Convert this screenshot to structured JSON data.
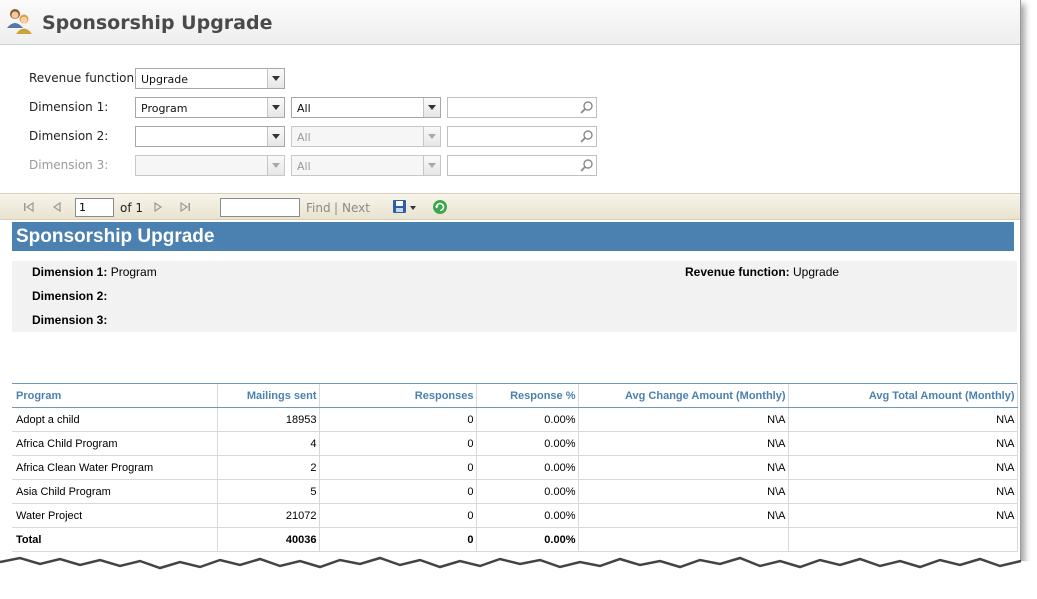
{
  "header": {
    "title": "Sponsorship Upgrade",
    "icon": "users-icon"
  },
  "parameters": {
    "revenue_function": {
      "label": "Revenue function:",
      "value": "Upgrade"
    },
    "dimension1": {
      "label": "Dimension 1:",
      "value": "Program",
      "filter": "All",
      "lookup": ""
    },
    "dimension2": {
      "label": "Dimension 2:",
      "value": "",
      "filter": "All",
      "lookup": ""
    },
    "dimension3": {
      "label": "Dimension 3:",
      "value": "",
      "filter": "All",
      "lookup": ""
    }
  },
  "toolbar": {
    "page": "1",
    "of_label": "of 1",
    "find_label": "Find",
    "separator": "|",
    "next_label": "Next"
  },
  "report": {
    "title": "Sponsorship Upgrade",
    "banner_color": "#4b81b0",
    "summary": {
      "dim1_label": "Dimension 1:",
      "dim1_value": "Program",
      "dim2_label": "Dimension 2:",
      "dim2_value": "",
      "dim3_label": "Dimension 3:",
      "dim3_value": "",
      "revfn_label": "Revenue function:",
      "revfn_value": "Upgrade"
    },
    "columns": [
      "Program",
      "Mailings sent",
      "Responses",
      "Response %",
      "Avg Change Amount (Monthly)",
      "Avg Total Amount (Monthly)"
    ],
    "rows": [
      [
        "Adopt a child",
        "18953",
        "0",
        "0.00%",
        "N\\A",
        "N\\A"
      ],
      [
        "Africa Child Program",
        "4",
        "0",
        "0.00%",
        "N\\A",
        "N\\A"
      ],
      [
        "Africa Clean Water Program",
        "2",
        "0",
        "0.00%",
        "N\\A",
        "N\\A"
      ],
      [
        "Asia Child Program",
        "5",
        "0",
        "0.00%",
        "N\\A",
        "N\\A"
      ],
      [
        "Water Project",
        "21072",
        "0",
        "0.00%",
        "N\\A",
        "N\\A"
      ]
    ],
    "total": [
      "Total",
      "40036",
      "0",
      "0.00%",
      "",
      ""
    ]
  }
}
